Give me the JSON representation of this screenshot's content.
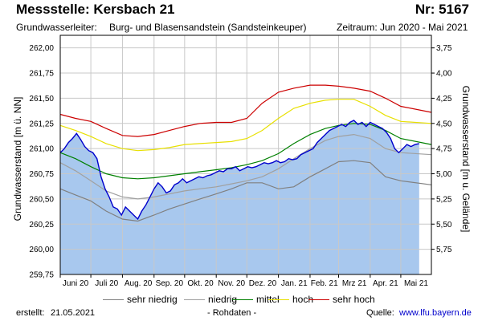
{
  "header": {
    "title": "Messstelle: Kersbach 21",
    "nr": "Nr: 5167",
    "aquifer_label": "Grundwasserleiter:",
    "aquifer_value": "Burg- und Blasensandstein (Sandsteinkeuper)",
    "period": "Zeitraum: Jun 2020 - Mai 2021"
  },
  "footer": {
    "created_label": "erstellt:",
    "created_date": "21.05.2021",
    "rohdaten": "- Rohdaten -",
    "source_label": "Quelle:",
    "source_link": "www.lfu.bayern.de"
  },
  "colors": {
    "fill": "#a8c8ee",
    "measured": "#0000cc",
    "sehr_niedrig": "#808080",
    "niedrig": "#a0a0a0",
    "mittel": "#008000",
    "hoch": "#e8e000",
    "sehr_hoch": "#cc0000",
    "grid": "#c8c8c8"
  },
  "chart_data": {
    "type": "area",
    "ylabel": "Grundwasserstand [m ü. NN]",
    "ylabel_right": "Grundwasserstand [m u. Gelände]",
    "ylim": [
      259.75,
      262.125
    ],
    "y_ticks": [
      259.75,
      260.0,
      260.25,
      260.5,
      260.75,
      261.0,
      261.25,
      261.5,
      261.75,
      262.0
    ],
    "y_tick_labels": [
      "259,75",
      "260,00",
      "260,25",
      "260,50",
      "260,75",
      "261,00",
      "261,25",
      "261,50",
      "261,75",
      "262,00"
    ],
    "y_right_ticks": [
      5.75,
      5.5,
      5.25,
      5.0,
      4.75,
      4.5,
      4.25,
      4.0,
      3.75
    ],
    "y_right_tick_labels": [
      "5,75",
      "5,50",
      "5,25",
      "5,00",
      "4,75",
      "4,50",
      "4,25",
      "4,00",
      "3,75"
    ],
    "right_axis_reference": 265.75,
    "x_range": [
      "2020-06-01",
      "2021-05-31"
    ],
    "x_month_starts": [
      "2020-06-01",
      "2020-07-01",
      "2020-08-01",
      "2020-09-01",
      "2020-10-01",
      "2020-11-01",
      "2020-12-01",
      "2021-01-01",
      "2021-02-01",
      "2021-03-01",
      "2021-04-01",
      "2021-05-01"
    ],
    "x_tick_labels": [
      "Juni 20",
      "Juli 20",
      "Aug. 20",
      "Sep. 20",
      "Okt. 20",
      "Nov. 20",
      "Dez. 20",
      "Jan. 21",
      "Feb. 21",
      "Mrz 21",
      "Apr. 21",
      "Mai 21"
    ],
    "grid": true,
    "legend": {
      "placement": "bottom",
      "items": [
        {
          "key": "sehr_niedrig",
          "label": "sehr niedrig"
        },
        {
          "key": "niedrig",
          "label": "niedrig"
        },
        {
          "key": "mittel",
          "label": "mittel"
        },
        {
          "key": "hoch",
          "label": "hoch"
        },
        {
          "key": "sehr_hoch",
          "label": "sehr hoch"
        }
      ]
    },
    "series": [
      {
        "key": "measured",
        "x": [
          "2020-06-01",
          "2020-06-05",
          "2020-06-09",
          "2020-06-13",
          "2020-06-17",
          "2020-06-21",
          "2020-06-25",
          "2020-06-29",
          "2020-07-03",
          "2020-07-07",
          "2020-07-11",
          "2020-07-15",
          "2020-07-19",
          "2020-07-23",
          "2020-07-27",
          "2020-07-31",
          "2020-08-04",
          "2020-08-08",
          "2020-08-12",
          "2020-08-16",
          "2020-08-20",
          "2020-08-24",
          "2020-08-28",
          "2020-09-01",
          "2020-09-05",
          "2020-09-09",
          "2020-09-13",
          "2020-09-17",
          "2020-09-21",
          "2020-09-25",
          "2020-09-29",
          "2020-10-03",
          "2020-10-07",
          "2020-10-11",
          "2020-10-15",
          "2020-10-19",
          "2020-10-23",
          "2020-10-27",
          "2020-10-31",
          "2020-11-04",
          "2020-11-08",
          "2020-11-12",
          "2020-11-16",
          "2020-11-20",
          "2020-11-24",
          "2020-11-28",
          "2020-12-02",
          "2020-12-06",
          "2020-12-10",
          "2020-12-14",
          "2020-12-18",
          "2020-12-22",
          "2020-12-26",
          "2020-12-30",
          "2021-01-03",
          "2021-01-07",
          "2021-01-11",
          "2021-01-15",
          "2021-01-19",
          "2021-01-23",
          "2021-01-27",
          "2021-01-31",
          "2021-02-04",
          "2021-02-08",
          "2021-02-12",
          "2021-02-16",
          "2021-02-20",
          "2021-02-24",
          "2021-02-28",
          "2021-03-04",
          "2021-03-08",
          "2021-03-12",
          "2021-03-16",
          "2021-03-20",
          "2021-03-24",
          "2021-03-28",
          "2021-04-01",
          "2021-04-05",
          "2021-04-09",
          "2021-04-13",
          "2021-04-17",
          "2021-04-21",
          "2021-04-25",
          "2021-04-29",
          "2021-05-03",
          "2021-05-07",
          "2021-05-11",
          "2021-05-15",
          "2021-05-19"
        ],
        "values": [
          260.96,
          261.0,
          261.06,
          261.1,
          261.15,
          261.09,
          261.02,
          260.98,
          260.96,
          260.9,
          260.72,
          260.6,
          260.52,
          260.42,
          260.4,
          260.34,
          260.42,
          260.38,
          260.34,
          260.3,
          260.38,
          260.44,
          260.52,
          260.6,
          260.66,
          260.62,
          260.56,
          260.58,
          260.64,
          260.66,
          260.7,
          260.66,
          260.68,
          260.7,
          260.72,
          260.71,
          260.73,
          260.74,
          260.76,
          260.78,
          260.77,
          260.8,
          260.8,
          260.82,
          260.78,
          260.8,
          260.82,
          260.81,
          260.82,
          260.84,
          260.86,
          260.85,
          260.86,
          260.88,
          260.86,
          260.87,
          260.9,
          260.89,
          260.9,
          260.94,
          260.96,
          260.98,
          261.0,
          261.06,
          261.1,
          261.14,
          261.18,
          261.2,
          261.22,
          261.24,
          261.22,
          261.26,
          261.28,
          261.24,
          261.26,
          261.22,
          261.26,
          261.24,
          261.22,
          261.2,
          261.16,
          261.1,
          261.0,
          260.96,
          261.0,
          261.04,
          261.02,
          261.04,
          261.05
        ]
      },
      {
        "key": "sehr_hoch",
        "x": [
          "2020-06-01",
          "2020-06-16",
          "2020-07-01",
          "2020-07-16",
          "2020-08-01",
          "2020-08-16",
          "2020-09-01",
          "2020-09-16",
          "2020-10-01",
          "2020-10-16",
          "2020-11-01",
          "2020-11-16",
          "2020-12-01",
          "2020-12-16",
          "2021-01-01",
          "2021-01-16",
          "2021-02-01",
          "2021-02-16",
          "2021-03-01",
          "2021-03-16",
          "2021-04-01",
          "2021-04-16",
          "2021-05-01",
          "2021-05-31"
        ],
        "values": [
          261.34,
          261.3,
          261.27,
          261.2,
          261.13,
          261.12,
          261.14,
          261.18,
          261.22,
          261.25,
          261.26,
          261.26,
          261.3,
          261.45,
          261.56,
          261.6,
          261.63,
          261.63,
          261.62,
          261.6,
          261.57,
          261.5,
          261.42,
          261.36
        ]
      },
      {
        "key": "hoch",
        "x": [
          "2020-06-01",
          "2020-06-16",
          "2020-07-01",
          "2020-07-16",
          "2020-08-01",
          "2020-08-16",
          "2020-09-01",
          "2020-09-16",
          "2020-10-01",
          "2020-10-16",
          "2020-11-01",
          "2020-11-16",
          "2020-12-01",
          "2020-12-16",
          "2021-01-01",
          "2021-01-16",
          "2021-02-01",
          "2021-02-16",
          "2021-03-01",
          "2021-03-16",
          "2021-04-01",
          "2021-04-16",
          "2021-05-01",
          "2021-05-31"
        ],
        "values": [
          261.23,
          261.18,
          261.12,
          261.05,
          261.0,
          260.98,
          260.99,
          261.01,
          261.04,
          261.05,
          261.06,
          261.07,
          261.1,
          261.18,
          261.3,
          261.4,
          261.45,
          261.48,
          261.49,
          261.49,
          261.42,
          261.33,
          261.27,
          261.25
        ]
      },
      {
        "key": "mittel",
        "x": [
          "2020-06-01",
          "2020-06-16",
          "2020-07-01",
          "2020-07-16",
          "2020-08-01",
          "2020-08-16",
          "2020-09-01",
          "2020-09-16",
          "2020-10-01",
          "2020-10-16",
          "2020-11-01",
          "2020-11-16",
          "2020-12-01",
          "2020-12-16",
          "2021-01-01",
          "2021-01-16",
          "2021-02-01",
          "2021-02-16",
          "2021-03-01",
          "2021-03-16",
          "2021-04-01",
          "2021-04-16",
          "2021-05-01",
          "2021-05-31"
        ],
        "values": [
          260.96,
          260.9,
          260.82,
          260.75,
          260.71,
          260.7,
          260.71,
          260.73,
          260.75,
          260.77,
          260.79,
          260.81,
          260.84,
          260.88,
          260.95,
          261.05,
          261.14,
          261.2,
          261.23,
          261.25,
          261.24,
          261.18,
          261.1,
          261.04
        ]
      },
      {
        "key": "niedrig",
        "x": [
          "2020-06-01",
          "2020-06-16",
          "2020-07-01",
          "2020-07-16",
          "2020-08-01",
          "2020-08-16",
          "2020-09-01",
          "2020-09-16",
          "2020-10-01",
          "2020-10-16",
          "2020-11-01",
          "2020-11-16",
          "2020-12-01",
          "2020-12-16",
          "2021-01-01",
          "2021-01-16",
          "2021-02-01",
          "2021-02-16",
          "2021-03-01",
          "2021-03-16",
          "2021-04-01",
          "2021-04-16",
          "2021-05-01",
          "2021-05-31"
        ],
        "values": [
          260.86,
          260.78,
          260.68,
          260.58,
          260.52,
          260.5,
          260.52,
          260.55,
          260.58,
          260.6,
          260.62,
          260.65,
          260.68,
          260.72,
          260.8,
          260.9,
          261.0,
          261.08,
          261.12,
          261.14,
          261.1,
          261.0,
          260.96,
          260.94
        ]
      },
      {
        "key": "sehr_niedrig",
        "x": [
          "2020-06-01",
          "2020-06-16",
          "2020-07-01",
          "2020-07-16",
          "2020-08-01",
          "2020-08-16",
          "2020-09-01",
          "2020-09-16",
          "2020-10-01",
          "2020-10-16",
          "2020-11-01",
          "2020-11-16",
          "2020-12-01",
          "2020-12-16",
          "2021-01-01",
          "2021-01-16",
          "2021-02-01",
          "2021-02-16",
          "2021-03-01",
          "2021-03-16",
          "2021-04-01",
          "2021-04-16",
          "2021-05-01",
          "2021-05-31"
        ],
        "values": [
          260.6,
          260.54,
          260.48,
          260.38,
          260.3,
          260.28,
          260.34,
          260.4,
          260.45,
          260.5,
          260.55,
          260.6,
          260.66,
          260.66,
          260.6,
          260.62,
          260.72,
          260.8,
          260.87,
          260.88,
          260.86,
          260.72,
          260.68,
          260.64
        ]
      }
    ]
  }
}
